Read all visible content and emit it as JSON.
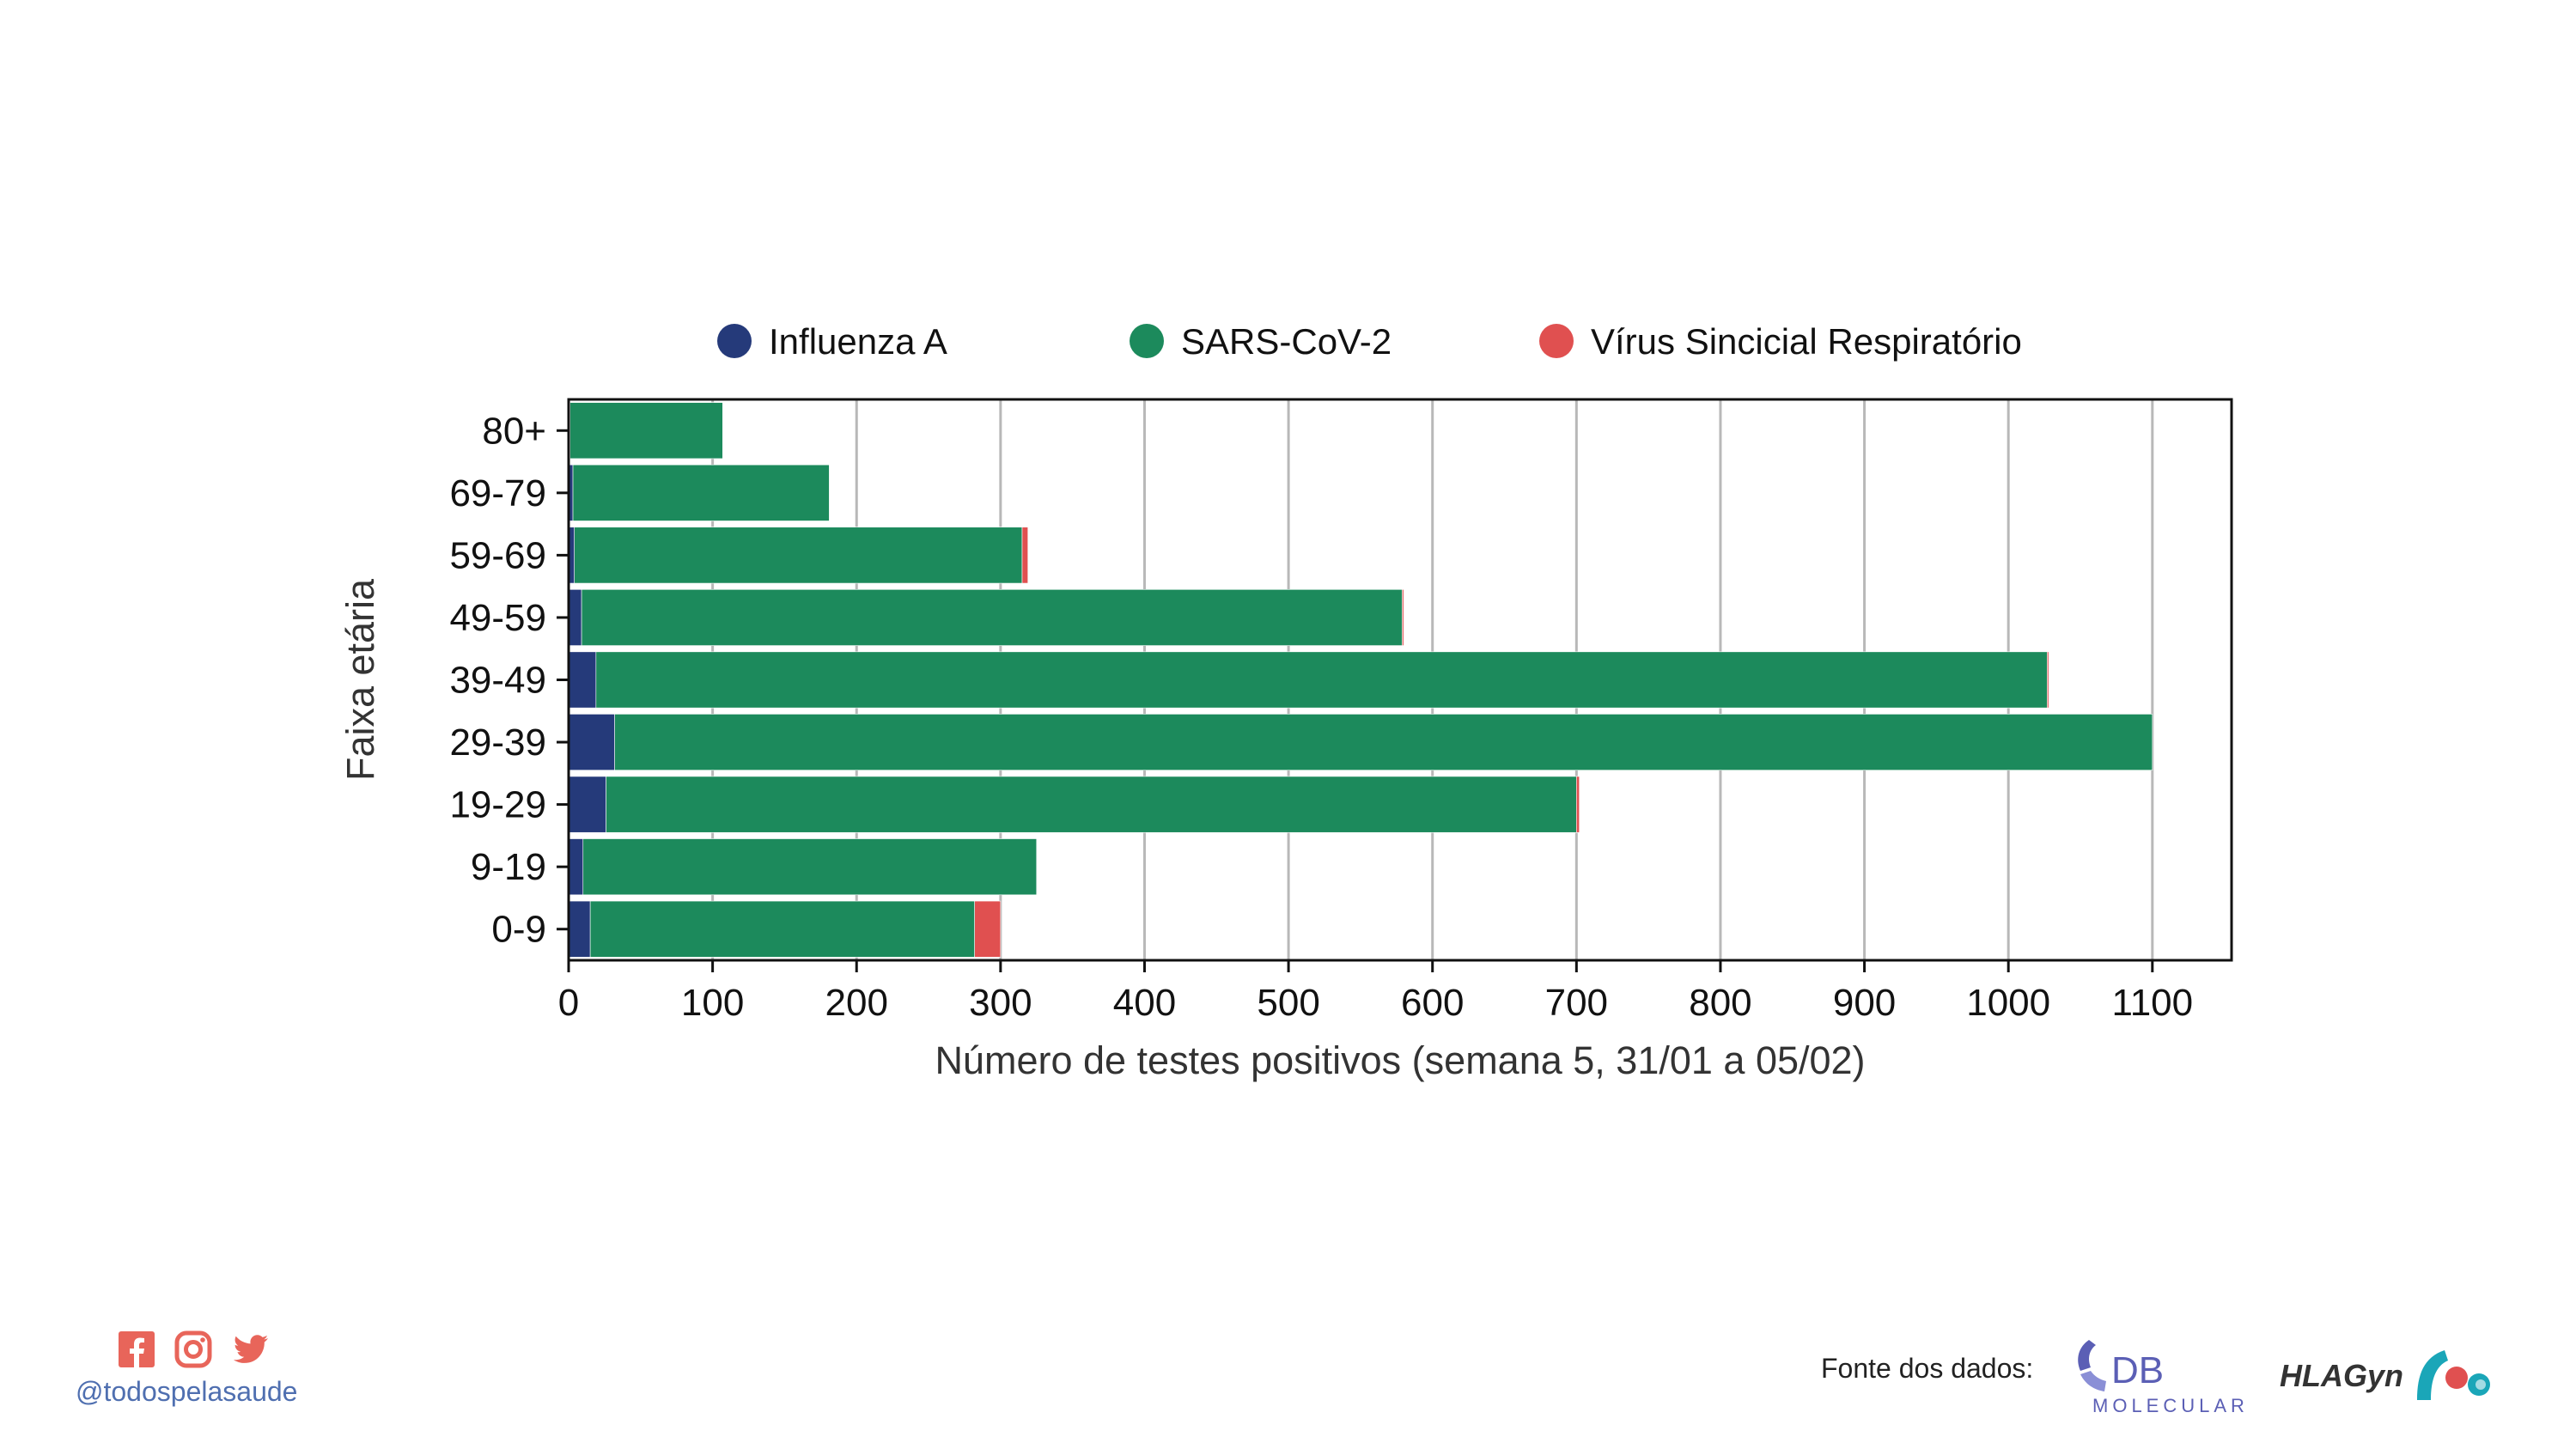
{
  "chart_data": {
    "type": "bar",
    "orientation": "horizontal",
    "stacked": true,
    "categories": [
      "80+",
      "69-79",
      "59-69",
      "49-59",
      "39-49",
      "29-39",
      "19-29",
      "9-19",
      "0-9"
    ],
    "series": [
      {
        "name": "Influenza A",
        "color": "#253a7a",
        "values": [
          1,
          3,
          4,
          9,
          19,
          32,
          26,
          10,
          15
        ]
      },
      {
        "name": "SARS-CoV-2",
        "color": "#1c8a5c",
        "values": [
          106,
          178,
          311,
          570,
          1008,
          1068,
          674,
          315,
          267
        ]
      },
      {
        "name": "Vírus Sincicial Respiratório",
        "color": "#e05050",
        "values": [
          0,
          0,
          4,
          1,
          1,
          0,
          2,
          0,
          18
        ]
      }
    ],
    "xlim": [
      0,
      1155
    ],
    "xticks": [
      0,
      100,
      200,
      300,
      400,
      500,
      600,
      700,
      800,
      900,
      1000,
      1100
    ],
    "xlabel": "Número de testes positivos (semana 5, 31/01 a 05/02)",
    "ylabel": "Faixa etária",
    "grid": "vertical",
    "legend": "top"
  },
  "footer": {
    "social_handle": "@todospelasaude",
    "social_icons": [
      "facebook-icon",
      "instagram-icon",
      "twitter-icon"
    ],
    "source_label": "Fonte dos dados:",
    "logo_db_text": "DB",
    "logo_db_subtext": "MOLECULAR",
    "logo_hla_text": "HLAGyn"
  }
}
